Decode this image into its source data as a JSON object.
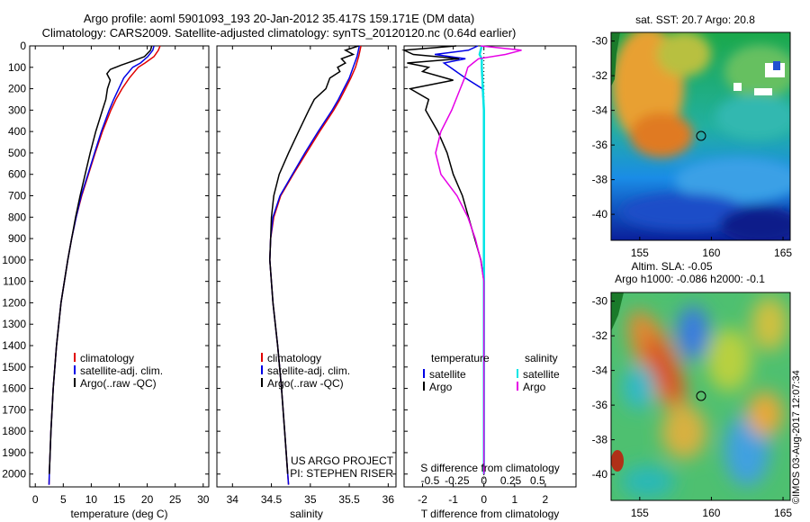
{
  "header": {
    "line1": "Argo profile: aoml 5901093_193 20-Jan-2012 35.417S 159.171E (DM data)",
    "line2": "Climatology: CARS2009. Satellite-adjusted climatology: synTS_20120120.nc (0.64d earlier)"
  },
  "colors": {
    "clim": "#e00000",
    "sat": "#0000e6",
    "argo": "#000000",
    "sat_s": "#00e5e5",
    "argo_s": "#e600e6"
  },
  "depth_axis": {
    "ticks": [
      "0",
      "100",
      "200",
      "300",
      "400",
      "500",
      "600",
      "700",
      "800",
      "900",
      "1000",
      "1100",
      "1200",
      "1300",
      "1400",
      "1500",
      "1600",
      "1700",
      "1800",
      "1900",
      "2000"
    ]
  },
  "chart_data": [
    {
      "type": "line",
      "name": "temperature",
      "xlabel": "temperature (deg C)",
      "xlim": [
        -1,
        31
      ],
      "ylim": [
        0,
        2060
      ],
      "xticks": [
        "0",
        "5",
        "10",
        "15",
        "20",
        "25",
        "30"
      ],
      "legend": [
        "climatology",
        "satellite-adj. clim.",
        "Argo(..raw -QC)"
      ],
      "series": [
        {
          "name": "climatology",
          "depth": [
            0,
            20,
            50,
            80,
            100,
            150,
            200,
            250,
            300,
            400,
            500,
            600,
            700,
            800,
            900,
            1000,
            1200,
            1400,
            1600,
            1800,
            2000,
            2050
          ],
          "values": [
            22.3,
            22.0,
            21.2,
            19.6,
            18.4,
            16.8,
            15.5,
            14.4,
            13.5,
            12.0,
            10.7,
            9.5,
            8.3,
            7.3,
            6.5,
            5.8,
            4.6,
            3.8,
            3.2,
            2.8,
            2.5,
            2.45
          ]
        },
        {
          "name": "satellite-adj. clim.",
          "depth": [
            0,
            20,
            50,
            80,
            100,
            150,
            200,
            250,
            300,
            400,
            500,
            600,
            700,
            800,
            900,
            1000,
            1200,
            1400,
            1600,
            1800,
            2000,
            2050
          ],
          "values": [
            21.2,
            21.0,
            20.1,
            18.8,
            17.4,
            15.8,
            14.9,
            14.0,
            13.2,
            11.8,
            10.6,
            9.4,
            8.2,
            7.3,
            6.5,
            5.8,
            4.6,
            3.8,
            3.2,
            2.8,
            2.5,
            2.45
          ]
        },
        {
          "name": "Argo(..raw -QC)",
          "depth": [
            0,
            20,
            50,
            70,
            90,
            110,
            130,
            160,
            200,
            250,
            300,
            400,
            500,
            600,
            700,
            800,
            900,
            1000,
            1200,
            1400,
            1600,
            1800,
            2000
          ],
          "values": [
            20.8,
            20.6,
            19.5,
            17.5,
            15.3,
            13.4,
            12.8,
            13.4,
            12.9,
            12.6,
            12.0,
            10.8,
            9.8,
            8.9,
            8.0,
            7.2,
            6.5,
            5.8,
            4.6,
            3.8,
            3.2,
            2.8,
            2.5
          ]
        }
      ]
    },
    {
      "type": "line",
      "name": "salinity",
      "xlabel": "salinity",
      "xlim": [
        33.8,
        36.1
      ],
      "ylim": [
        0,
        2060
      ],
      "xticks": [
        "34",
        "34.5",
        "35",
        "35.5",
        "36"
      ],
      "legend": [
        "climatology",
        "satellite-adj. clim.",
        "Argo(..raw -QC)"
      ],
      "annotation": [
        "US ARGO PROJECT",
        "PI: STEPHEN RISER"
      ],
      "series": [
        {
          "name": "climatology",
          "depth": [
            0,
            50,
            100,
            150,
            200,
            250,
            300,
            400,
            500,
            600,
            700,
            800,
            900,
            1000,
            1200,
            1400,
            1600,
            1800,
            2000,
            2050
          ],
          "values": [
            35.65,
            35.62,
            35.58,
            35.52,
            35.45,
            35.38,
            35.3,
            35.12,
            34.95,
            34.78,
            34.62,
            34.53,
            34.49,
            34.48,
            34.52,
            34.58,
            34.63,
            34.67,
            34.71,
            34.72
          ]
        },
        {
          "name": "satellite-adj. clim.",
          "depth": [
            0,
            50,
            100,
            150,
            200,
            250,
            300,
            400,
            500,
            600,
            700,
            800,
            900,
            1000,
            1200,
            1400,
            1600,
            1800,
            2000,
            2050
          ],
          "values": [
            35.63,
            35.6,
            35.55,
            35.5,
            35.43,
            35.36,
            35.28,
            35.1,
            34.93,
            34.77,
            34.61,
            34.52,
            34.49,
            34.48,
            34.52,
            34.58,
            34.63,
            34.67,
            34.71,
            34.72
          ]
        },
        {
          "name": "Argo(..raw -QC)",
          "depth": [
            0,
            20,
            40,
            60,
            80,
            100,
            120,
            150,
            200,
            250,
            300,
            400,
            500,
            600,
            700,
            800,
            900,
            1000,
            1200,
            1400,
            1600,
            1800,
            2000
          ],
          "values": [
            35.62,
            35.45,
            35.55,
            35.4,
            35.45,
            35.35,
            35.38,
            35.25,
            35.2,
            35.05,
            34.98,
            34.85,
            34.72,
            34.6,
            34.53,
            34.5,
            34.49,
            34.48,
            34.52,
            34.58,
            34.63,
            34.67,
            34.71
          ]
        }
      ]
    },
    {
      "type": "line",
      "name": "difference",
      "xlabel": "T difference from climatology",
      "xlabel2": "S difference from climatology",
      "xlim": [
        -2.6,
        3.0
      ],
      "ylim": [
        0,
        2060
      ],
      "xticks": [
        "-2",
        "-1",
        "0",
        "1",
        "2"
      ],
      "xticks2": [
        "-0.5",
        "-0.25",
        "0",
        "0.25",
        "0.5"
      ],
      "legend_groups": [
        {
          "title": "temperature",
          "items": [
            "satellite",
            "Argo"
          ]
        },
        {
          "title": "salinity",
          "items": [
            "satellite",
            "Argo"
          ]
        }
      ],
      "series": [
        {
          "name": "T satellite",
          "depth": [
            0,
            20,
            40,
            60,
            80,
            100,
            150,
            200,
            300,
            500,
            1000,
            2000
          ],
          "values": [
            -0.2,
            -0.5,
            -1.6,
            -0.6,
            -1.3,
            -1.1,
            -0.6,
            -0.05,
            0.0,
            0.0,
            0.0,
            0.0
          ]
        },
        {
          "name": "T Argo",
          "depth": [
            0,
            20,
            40,
            60,
            80,
            100,
            120,
            160,
            200,
            250,
            300,
            400,
            500,
            600,
            700,
            800,
            900,
            1000,
            1100,
            1200,
            2000
          ],
          "values": [
            -0.9,
            -2.6,
            -2.3,
            -0.8,
            -2.5,
            -1.8,
            -2.0,
            -1.0,
            -2.4,
            -1.8,
            -1.9,
            -1.5,
            -1.2,
            -1.0,
            -0.7,
            -0.5,
            -0.3,
            -0.1,
            0.0,
            0.0,
            0.0
          ]
        },
        {
          "name": "S satellite",
          "depth": [
            0,
            20,
            40,
            60,
            80,
            100,
            200,
            300,
            500,
            1000,
            2000
          ],
          "values": [
            -0.02,
            -0.03,
            -0.04,
            -0.02,
            -0.02,
            -0.02,
            -0.01,
            0.0,
            0.0,
            0.0,
            0.0
          ]
        },
        {
          "name": "S Argo",
          "depth": [
            0,
            20,
            40,
            60,
            80,
            100,
            150,
            200,
            300,
            400,
            500,
            600,
            700,
            800,
            900,
            1000,
            1100,
            1200,
            2000
          ],
          "values": [
            -0.03,
            0.35,
            0.2,
            -0.05,
            -0.1,
            -0.15,
            -0.18,
            -0.22,
            -0.3,
            -0.4,
            -0.45,
            -0.4,
            -0.25,
            -0.15,
            -0.08,
            -0.03,
            0.0,
            0.0,
            0.0
          ]
        }
      ]
    },
    {
      "type": "heatmap",
      "name": "sst-map",
      "title": "sat. SST: 20.7 Argo: 20.8",
      "xticks": [
        "155",
        "160",
        "165"
      ],
      "yticks": [
        "-30",
        "-32",
        "-34",
        "-36",
        "-38",
        "-40"
      ],
      "xlim": [
        153,
        165.5
      ],
      "ylim": [
        -41.5,
        -29.5
      ],
      "float_position": [
        159.171,
        -35.417
      ]
    },
    {
      "type": "heatmap",
      "name": "sla-map",
      "title": "Altim. SLA: -0.05",
      "subtitle": "Argo h1000: -0.086 h2000: -0.1",
      "xticks": [
        "155",
        "160",
        "165"
      ],
      "yticks": [
        "-30",
        "-32",
        "-34",
        "-36",
        "-38",
        "-40"
      ],
      "xlim": [
        153,
        165.5
      ],
      "ylim": [
        -41.5,
        -29.5
      ],
      "float_position": [
        159.171,
        -35.417
      ]
    }
  ],
  "footer": {
    "stamp": "©IMOS 03-Aug-2017 12:07:34"
  }
}
